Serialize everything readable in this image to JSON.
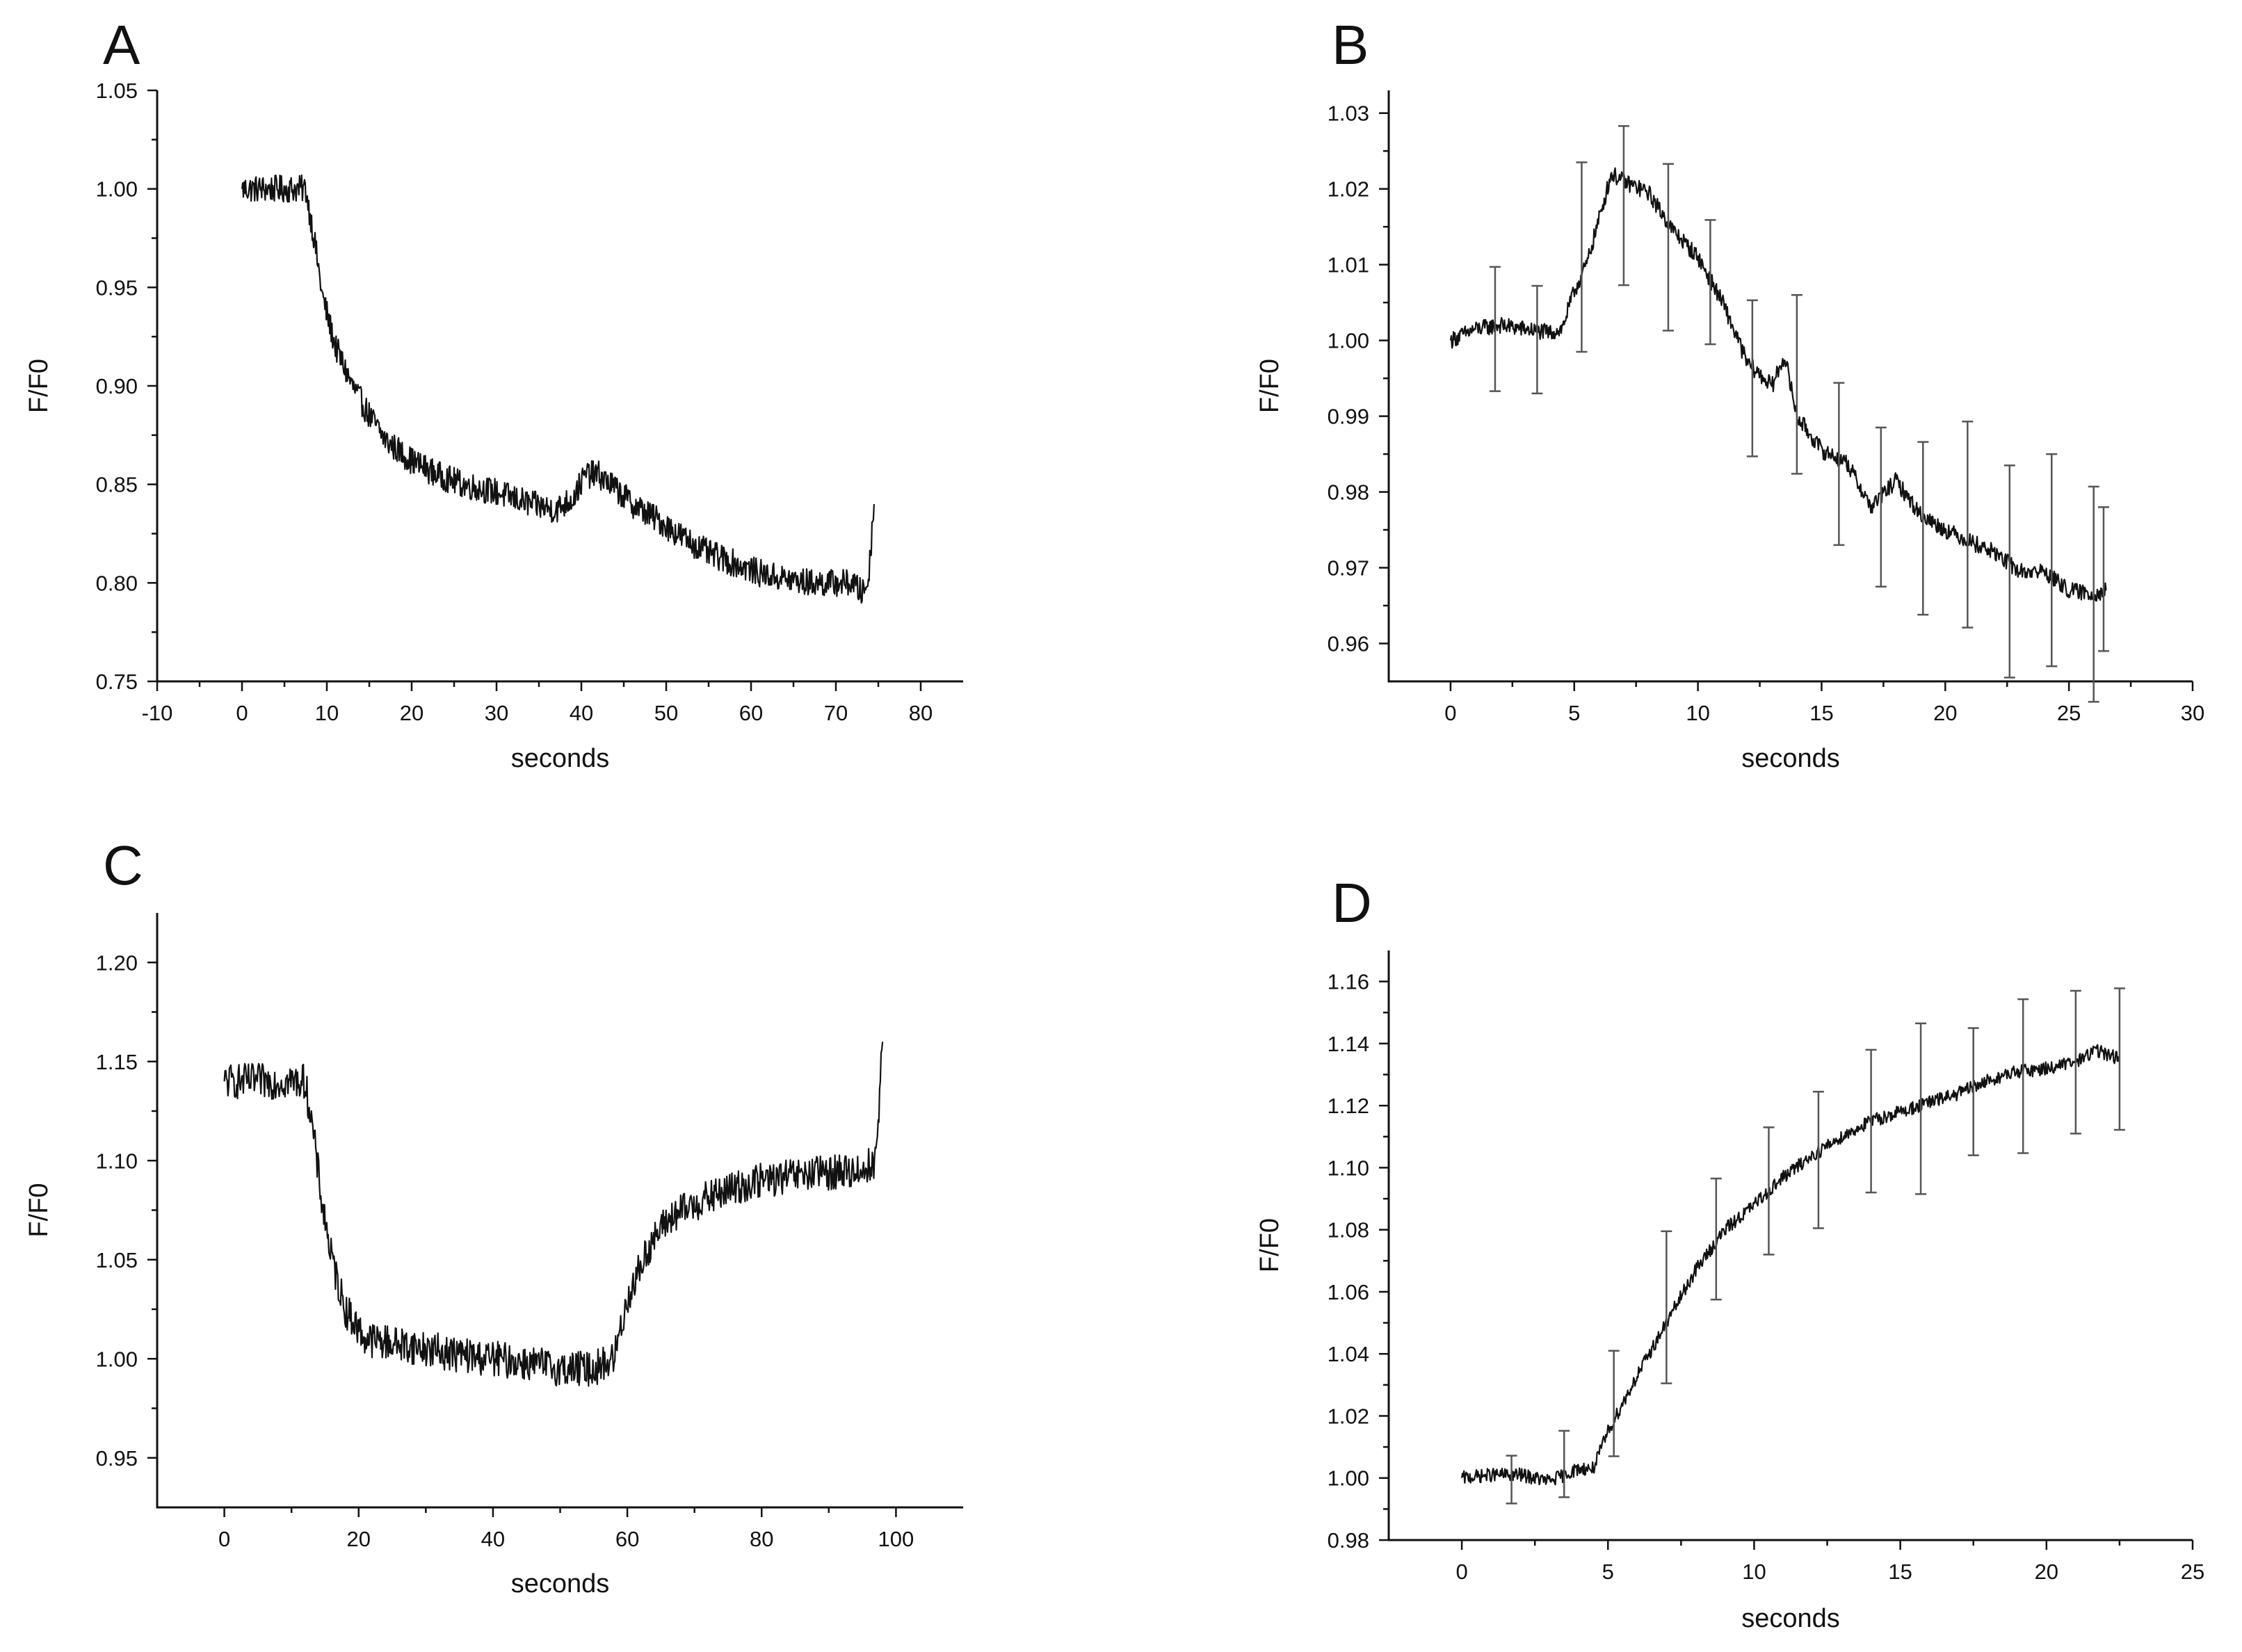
{
  "chart_data": [
    {
      "panel": "A",
      "type": "line",
      "title": "",
      "xlabel": "seconds",
      "ylabel": "F/F0",
      "xlim": [
        -10,
        85
      ],
      "ylim": [
        0.75,
        1.05
      ],
      "xticks": [
        -10,
        0,
        10,
        20,
        30,
        40,
        50,
        60,
        70,
        80
      ],
      "xtick_labels": [
        "-10",
        "0",
        "10",
        "20",
        "30",
        "40",
        "50",
        "60",
        "70",
        "80"
      ],
      "yticks": [
        0.75,
        0.8,
        0.85,
        0.9,
        0.95,
        1.0,
        1.05
      ],
      "ytick_labels": [
        "0.75",
        "0.80",
        "0.85",
        "0.90",
        "0.95",
        "1.00",
        "1.05"
      ],
      "series": [
        {
          "name": "F/F0",
          "x": [
            0,
            2,
            4,
            6,
            7.5,
            8.5,
            9.5,
            11,
            13,
            15,
            17,
            20,
            23,
            26,
            30,
            34,
            37,
            39,
            40.5,
            42,
            44,
            46,
            49,
            52,
            55,
            58,
            61,
            64,
            67,
            70,
            72,
            73,
            73.8,
            74.5
          ],
          "y": [
            1.0,
            1.0,
            1.0,
            1.0,
            1.0,
            0.975,
            0.945,
            0.92,
            0.9,
            0.885,
            0.872,
            0.862,
            0.855,
            0.85,
            0.846,
            0.84,
            0.837,
            0.843,
            0.855,
            0.855,
            0.848,
            0.84,
            0.832,
            0.823,
            0.815,
            0.81,
            0.805,
            0.802,
            0.8,
            0.8,
            0.8,
            0.795,
            0.8,
            0.84
          ],
          "noise_amplitude": 0.007
        }
      ],
      "error_bars": []
    },
    {
      "panel": "B",
      "type": "line",
      "title": "",
      "xlabel": "seconds",
      "ylabel": "F/F0",
      "xlim": [
        -2.5,
        30
      ],
      "ylim": [
        0.955,
        1.033
      ],
      "xticks": [
        0,
        5,
        10,
        15,
        20,
        25,
        30
      ],
      "xtick_labels": [
        "0",
        "5",
        "10",
        "15",
        "20",
        "25",
        "30"
      ],
      "yticks": [
        0.96,
        0.97,
        0.98,
        0.99,
        1.0,
        1.01,
        1.02,
        1.03
      ],
      "ytick_labels": [
        "0.96",
        "0.97",
        "0.98",
        "0.99",
        "1.00",
        "1.01",
        "1.02",
        "1.03"
      ],
      "series": [
        {
          "name": "F/F0",
          "x": [
            0,
            1,
            2,
            3,
            4,
            4.5,
            5,
            5.5,
            6,
            6.5,
            7,
            8,
            9,
            10,
            11,
            12,
            13,
            13.5,
            14,
            15,
            16,
            17,
            18,
            19,
            20,
            21,
            22,
            23,
            24,
            25,
            26,
            26.5
          ],
          "y": [
            1.0,
            1.0015,
            1.002,
            1.0015,
            1.001,
            1.0015,
            1.0065,
            1.01,
            1.016,
            1.022,
            1.021,
            1.0195,
            1.0145,
            1.011,
            1.005,
            0.997,
            0.994,
            0.998,
            0.99,
            0.9855,
            0.984,
            0.978,
            0.9815,
            0.977,
            0.975,
            0.9735,
            0.972,
            0.9695,
            0.9695,
            0.967,
            0.9665,
            0.967
          ],
          "noise_amplitude": 0.0011
        }
      ],
      "error_bars": [
        {
          "x": 1.8,
          "y": 1.0015,
          "err": 0.0082
        },
        {
          "x": 3.5,
          "y": 1.0001,
          "err": 0.0071
        },
        {
          "x": 5.3,
          "y": 1.011,
          "err": 0.0125
        },
        {
          "x": 7.0,
          "y": 1.0178,
          "err": 0.0105
        },
        {
          "x": 8.8,
          "y": 1.0123,
          "err": 0.011
        },
        {
          "x": 10.5,
          "y": 1.0077,
          "err": 0.0082
        },
        {
          "x": 12.2,
          "y": 0.995,
          "err": 0.0103
        },
        {
          "x": 14.0,
          "y": 0.9942,
          "err": 0.0118
        },
        {
          "x": 15.7,
          "y": 0.9837,
          "err": 0.0107
        },
        {
          "x": 17.4,
          "y": 0.978,
          "err": 0.0105
        },
        {
          "x": 19.1,
          "y": 0.9752,
          "err": 0.0114
        },
        {
          "x": 20.9,
          "y": 0.9757,
          "err": 0.0136
        },
        {
          "x": 22.6,
          "y": 0.9695,
          "err": 0.014
        },
        {
          "x": 24.3,
          "y": 0.971,
          "err": 0.014
        },
        {
          "x": 26.0,
          "y": 0.9665,
          "err": 0.0142
        },
        {
          "x": 26.4,
          "y": 0.9685,
          "err": 0.0095
        }
      ]
    },
    {
      "panel": "C",
      "type": "line",
      "title": "",
      "xlabel": "seconds",
      "ylabel": "F/F0",
      "xlim": [
        -10,
        110
      ],
      "ylim": [
        0.925,
        1.225
      ],
      "xticks": [
        0,
        20,
        40,
        60,
        80,
        100
      ],
      "xtick_labels": [
        "0",
        "20",
        "40",
        "60",
        "80",
        "100"
      ],
      "yticks": [
        0.95,
        1.0,
        1.05,
        1.1,
        1.15,
        1.2
      ],
      "ytick_labels": [
        "0.95",
        "1.00",
        "1.05",
        "1.10",
        "1.15",
        "1.20"
      ],
      "series": [
        {
          "name": "F/F0",
          "x": [
            0,
            4,
            8,
            12,
            13,
            14.5,
            16,
            18,
            21,
            25,
            30,
            35,
            40,
            45,
            50,
            55,
            58,
            60,
            63,
            66,
            70,
            75,
            80,
            85,
            90,
            95,
            97,
            98
          ],
          "y": [
            1.14,
            1.14,
            1.14,
            1.14,
            1.12,
            1.08,
            1.05,
            1.025,
            1.01,
            1.008,
            1.005,
            1.002,
            1.0,
            0.998,
            0.995,
            0.995,
            1.0,
            1.03,
            1.055,
            1.07,
            1.078,
            1.085,
            1.09,
            1.092,
            1.094,
            1.095,
            1.1,
            1.16
          ],
          "noise_amplitude": 0.009
        }
      ],
      "error_bars": []
    },
    {
      "panel": "D",
      "type": "line",
      "title": "",
      "xlabel": "seconds",
      "ylabel": "F/F0",
      "xlim": [
        -2.5,
        25
      ],
      "ylim": [
        0.98,
        1.17
      ],
      "xticks": [
        0,
        5,
        10,
        15,
        20,
        25
      ],
      "xtick_labels": [
        "0",
        "5",
        "10",
        "15",
        "20",
        "25"
      ],
      "yticks": [
        0.98,
        1.0,
        1.02,
        1.04,
        1.06,
        1.08,
        1.1,
        1.12,
        1.14,
        1.16
      ],
      "ytick_labels": [
        "0.98",
        "1.00",
        "1.02",
        "1.04",
        "1.06",
        "1.08",
        "1.10",
        "1.12",
        "1.14",
        "1.16"
      ],
      "series": [
        {
          "name": "F/F0",
          "x": [
            0,
            1,
            2,
            3,
            4,
            4.5,
            5,
            6,
            7,
            8,
            9,
            10,
            11,
            12,
            13,
            14,
            15,
            16,
            17,
            18,
            19,
            20,
            21,
            21.7,
            22.5
          ],
          "y": [
            1.0,
            1.001,
            1.001,
            0.999,
            1.003,
            1.003,
            1.015,
            1.033,
            1.05,
            1.067,
            1.08,
            1.088,
            1.097,
            1.104,
            1.11,
            1.115,
            1.118,
            1.121,
            1.124,
            1.128,
            1.131,
            1.132,
            1.134,
            1.138,
            1.135
          ],
          "noise_amplitude": 0.0022
        }
      ],
      "error_bars": [
        {
          "x": 1.7,
          "y": 0.9995,
          "err": 0.0077
        },
        {
          "x": 3.5,
          "y": 1.0045,
          "err": 0.0107
        },
        {
          "x": 5.2,
          "y": 1.024,
          "err": 0.017
        },
        {
          "x": 7.0,
          "y": 1.055,
          "err": 0.0245
        },
        {
          "x": 8.7,
          "y": 1.077,
          "err": 0.0195
        },
        {
          "x": 10.5,
          "y": 1.0925,
          "err": 0.0205
        },
        {
          "x": 12.2,
          "y": 1.1025,
          "err": 0.022
        },
        {
          "x": 14.0,
          "y": 1.115,
          "err": 0.023
        },
        {
          "x": 15.7,
          "y": 1.119,
          "err": 0.0275
        },
        {
          "x": 17.5,
          "y": 1.1245,
          "err": 0.0205
        },
        {
          "x": 19.2,
          "y": 1.1295,
          "err": 0.0248
        },
        {
          "x": 21.0,
          "y": 1.134,
          "err": 0.023
        },
        {
          "x": 22.5,
          "y": 1.135,
          "err": 0.0228
        }
      ]
    }
  ]
}
